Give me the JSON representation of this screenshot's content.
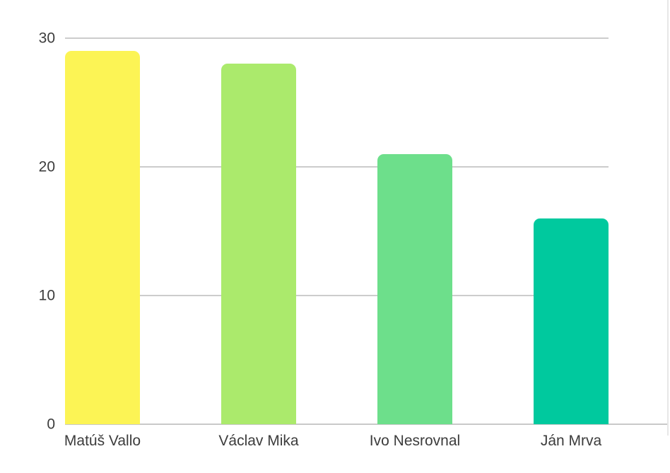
{
  "chart_data": {
    "type": "bar",
    "title": "",
    "xlabel": "",
    "ylabel": "",
    "categories": [
      "Matúš Vallo",
      "Václav Mika",
      "Ivo Nesrovnal",
      "Ján Mrva"
    ],
    "values": [
      29,
      28,
      21,
      16
    ],
    "bar_colors": [
      "#FCF455",
      "#ABEA6C",
      "#6DDF8B",
      "#00C99E"
    ],
    "ylim": [
      0,
      30
    ],
    "yticks": [
      0,
      10,
      20,
      30
    ],
    "grid": true,
    "legend_position": "none",
    "gridline_color": "#cccccc",
    "baseline_color": "#c9c9c9",
    "axis_text_color": "#3c3c3c",
    "background_color": "#ffffff"
  }
}
